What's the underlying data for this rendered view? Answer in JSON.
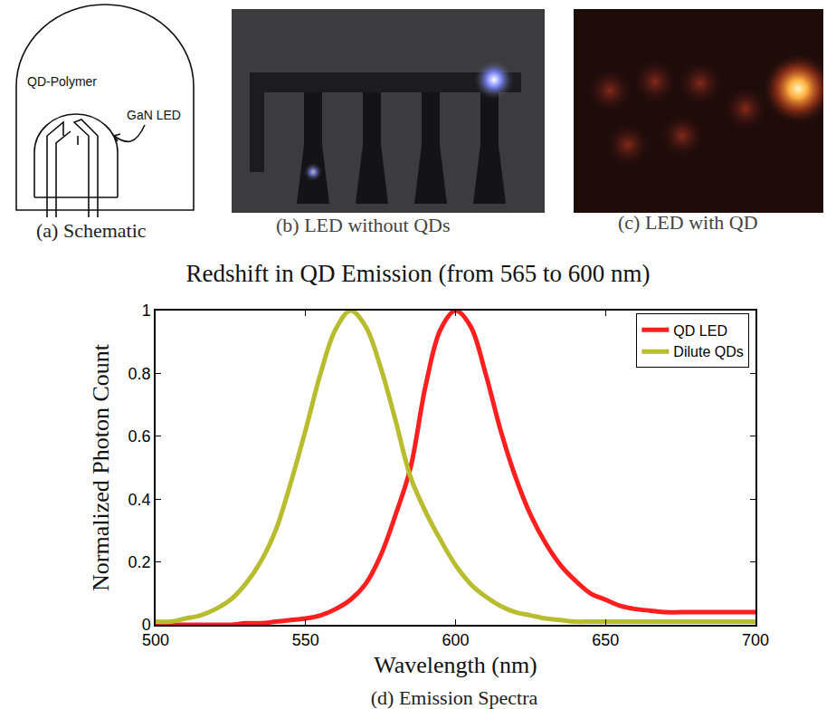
{
  "figure": {
    "panels": [
      {
        "caption": "(a) Schematic",
        "labels": [
          "QD-Polymer",
          "GaN LED"
        ]
      },
      {
        "caption": "(b) LED without QDs"
      },
      {
        "caption": "(c) LED with QD"
      },
      {
        "caption": "(d) Emission Spectra"
      }
    ]
  },
  "chart_data": {
    "type": "line",
    "title": "Redshift in QD Emission (from 565 to 600 nm)",
    "x_label": "Wavelength (nm)",
    "y_label": "Normalized Photon Count",
    "x": [
      500,
      505,
      510,
      515,
      520,
      525,
      530,
      535,
      540,
      545,
      550,
      555,
      560,
      565,
      570,
      575,
      580,
      585,
      590,
      595,
      600,
      605,
      610,
      615,
      620,
      625,
      630,
      635,
      640,
      645,
      650,
      655,
      660,
      665,
      670,
      675,
      680,
      685,
      690,
      695,
      700
    ],
    "series": [
      {
        "name": "QD LED",
        "color": "#ff1f1f",
        "values": [
          0,
          0,
          0,
          0,
          0,
          0,
          0.005,
          0.005,
          0.01,
          0.015,
          0.02,
          0.03,
          0.05,
          0.08,
          0.13,
          0.22,
          0.35,
          0.5,
          0.76,
          0.94,
          1.0,
          0.95,
          0.8,
          0.62,
          0.47,
          0.35,
          0.26,
          0.19,
          0.14,
          0.1,
          0.08,
          0.06,
          0.05,
          0.045,
          0.04,
          0.04,
          0.04,
          0.04,
          0.04,
          0.04,
          0.04
        ]
      },
      {
        "name": "Dilute QDs",
        "color": "#b7bd2f",
        "values": [
          0.01,
          0.01,
          0.02,
          0.03,
          0.05,
          0.08,
          0.13,
          0.2,
          0.3,
          0.45,
          0.62,
          0.8,
          0.94,
          1.0,
          0.95,
          0.82,
          0.65,
          0.47,
          0.36,
          0.27,
          0.19,
          0.13,
          0.09,
          0.06,
          0.04,
          0.03,
          0.02,
          0.015,
          0.01,
          0.01,
          0.01,
          0.01,
          0.01,
          0.01,
          0.01,
          0.01,
          0.01,
          0.01,
          0.01,
          0.01,
          0.01
        ]
      }
    ],
    "xlim": [
      500,
      700
    ],
    "ylim": [
      0,
      1
    ],
    "xticks": [
      500,
      550,
      600,
      650,
      700
    ],
    "yticks": [
      0,
      0.2,
      0.4,
      0.6,
      0.8,
      1
    ],
    "grid": false,
    "legend": "upper right"
  }
}
